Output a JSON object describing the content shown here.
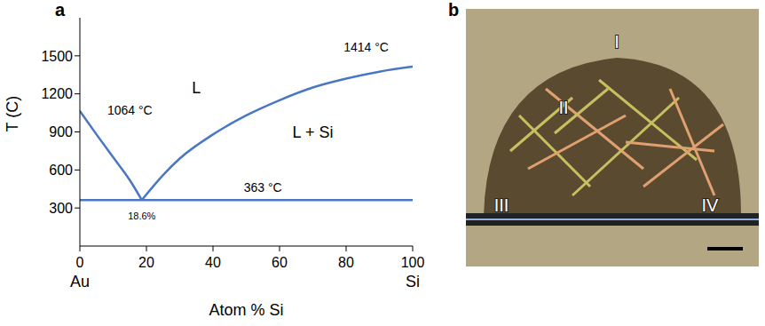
{
  "chart_data": {
    "type": "line",
    "panel_label": "a",
    "x_label": "Atom % Si",
    "y_label": "T (C)",
    "xlim": [
      0,
      100
    ],
    "xticks": [
      0,
      20,
      40,
      60,
      80,
      100
    ],
    "ylim": [
      0,
      1800
    ],
    "yticks": [
      300,
      600,
      900,
      1200,
      1500
    ],
    "x_end_labels": [
      {
        "x": 0,
        "label": "Au"
      },
      {
        "x": 100,
        "label": "Si"
      }
    ],
    "series": [
      {
        "color": "#4a77c4",
        "x": [
          0,
          5,
          10,
          15,
          18.6
        ],
        "values": [
          1064,
          880,
          700,
          520,
          363
        ]
      },
      {
        "color": "#4a77c4",
        "x": [
          18.6,
          25,
          30,
          40,
          50,
          60,
          70,
          80,
          90,
          100
        ],
        "values": [
          363,
          560,
          690,
          880,
          1030,
          1150,
          1250,
          1320,
          1375,
          1414
        ]
      },
      {
        "color": "#4a77c4",
        "x": [
          0,
          100
        ],
        "values": [
          363,
          363
        ]
      }
    ],
    "annotations": [
      {
        "text": "1064 °C",
        "x": 15,
        "y": 1070
      },
      {
        "text": "1414 °C",
        "x": 86,
        "y": 1570
      },
      {
        "text": "L",
        "x": 35,
        "y": 1250
      },
      {
        "text": "L + Si",
        "x": 70,
        "y": 900
      },
      {
        "text": "363 °C",
        "x": 55,
        "y": 460
      },
      {
        "text": "18.6%",
        "x": 18.6,
        "y": 240
      }
    ]
  },
  "photo_panel": {
    "panel_label": "b",
    "labels": [
      "I",
      "II",
      "III",
      "IV"
    ]
  }
}
